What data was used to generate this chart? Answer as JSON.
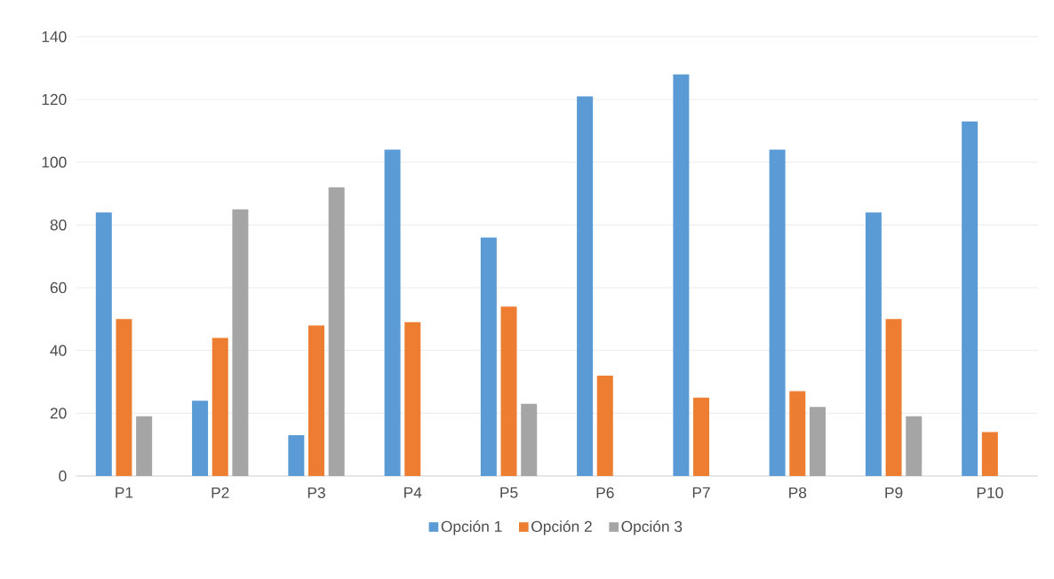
{
  "chart_data": {
    "type": "bar",
    "categories": [
      "P1",
      "P2",
      "P3",
      "P4",
      "P5",
      "P6",
      "P7",
      "P8",
      "P9",
      "P10"
    ],
    "series": [
      {
        "name": "Opción 1",
        "color": "#5b9bd5",
        "values": [
          84,
          24,
          13,
          104,
          76,
          121,
          128,
          104,
          84,
          113
        ]
      },
      {
        "name": "Opción 2",
        "color": "#ed7d31",
        "values": [
          50,
          44,
          48,
          49,
          54,
          32,
          25,
          27,
          50,
          14
        ]
      },
      {
        "name": "Opción 3",
        "color": "#a5a5a5",
        "values": [
          19,
          85,
          92,
          0,
          23,
          0,
          0,
          22,
          19,
          0
        ]
      }
    ],
    "ylim": [
      0,
      140
    ],
    "yticks": [
      0,
      20,
      40,
      60,
      80,
      100,
      120,
      140
    ],
    "grid": "y",
    "legend": "bottom"
  }
}
